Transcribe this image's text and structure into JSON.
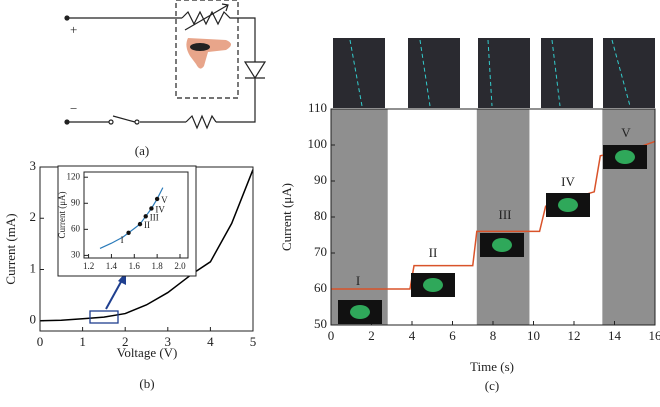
{
  "figure": {
    "panel_labels": [
      "(a)",
      "(b)",
      "(c)"
    ],
    "circuit": {
      "plus": "+",
      "minus": "−"
    }
  },
  "chart_data": [
    {
      "type": "line",
      "x_label": "Voltage (V)",
      "y_label": "Current (mA)",
      "x": [
        0,
        0.5,
        1,
        1.5,
        2,
        2.5,
        3,
        3.3,
        3.6,
        4,
        4.5,
        5
      ],
      "series": [
        {
          "color": "#000000",
          "values": [
            0,
            0.01,
            0.04,
            0.07,
            0.14,
            0.31,
            0.55,
            0.74,
            0.93,
            1.15,
            1.9,
            2.95
          ]
        }
      ],
      "xlim": [
        0,
        5
      ],
      "ylim": [
        -0.2,
        3
      ],
      "xticks": [
        0,
        1,
        2,
        3,
        4,
        5
      ],
      "yticks": [
        0,
        1,
        2,
        3
      ]
    },
    {
      "type": "line",
      "y_label": "Current (μA)",
      "x": [
        1.3,
        1.4,
        1.5,
        1.55,
        1.6,
        1.65,
        1.7,
        1.75,
        1.8,
        1.85
      ],
      "series": [
        {
          "color": "#2b7bba",
          "values": [
            38,
            44,
            51,
            56,
            61,
            66,
            75,
            84,
            95,
            108
          ]
        }
      ],
      "points": {
        "x": [
          1.55,
          1.65,
          1.7,
          1.75,
          1.8
        ],
        "values": [
          56,
          66,
          75,
          84,
          95
        ],
        "labels": [
          "I",
          "II",
          "III",
          "IV",
          "V"
        ]
      },
      "xlim": [
        1.16,
        2.07
      ],
      "ylim": [
        27,
        126
      ],
      "xticks": [
        1.2,
        1.4,
        1.6,
        1.8,
        {
          "value": 2,
          "label": "2.0"
        }
      ],
      "yticks": [
        30,
        60,
        90,
        120
      ]
    },
    {
      "type": "line",
      "x_label": "Time (s)",
      "y_label": "Current (μA)",
      "x": [
        0,
        3.9,
        4.1,
        7.0,
        7.2,
        10.3,
        10.6,
        13.0,
        13.3,
        15,
        16
      ],
      "series": [
        {
          "color": "#d9532a",
          "values": [
            60,
            60,
            66.5,
            66.5,
            76,
            76,
            83,
            87,
            97,
            99,
            101
          ]
        }
      ],
      "shaded_spans": [
        [
          0,
          2.8
        ],
        [
          7.2,
          9.8
        ],
        [
          13.4,
          16
        ]
      ],
      "annotations": [
        "I",
        "II",
        "III",
        "IV",
        "V"
      ],
      "xlim": [
        0,
        16
      ],
      "ylim": [
        50,
        110
      ],
      "xticks": [
        0,
        2,
        4,
        6,
        8,
        10,
        12,
        14,
        16
      ],
      "yticks": [
        50,
        60,
        70,
        80,
        90,
        100,
        110
      ]
    }
  ]
}
